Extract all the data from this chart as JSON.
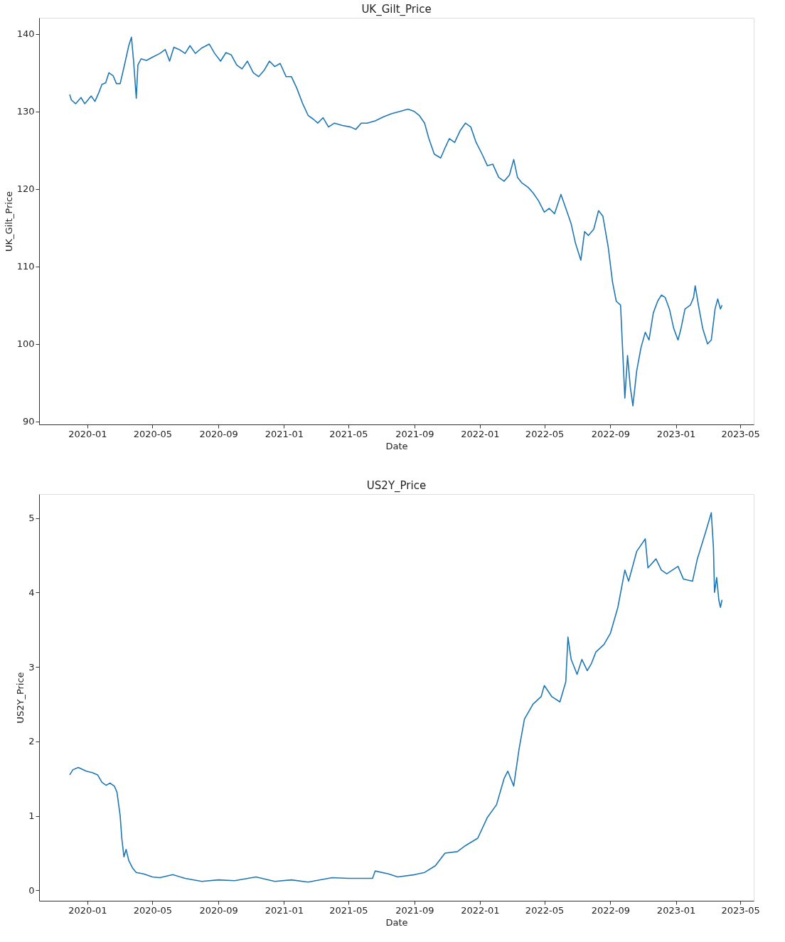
{
  "chart_data": [
    {
      "type": "line",
      "title": "UK_Gilt_Price",
      "xlabel": "Date",
      "ylabel": "UK_Gilt_Price",
      "grid": false,
      "xlim": [
        "2019-10-03",
        "2023-05-26"
      ],
      "xticks": [
        "2020-01",
        "2020-05",
        "2020-09",
        "2021-01",
        "2021-05",
        "2021-09",
        "2022-01",
        "2022-05",
        "2022-09",
        "2023-01",
        "2023-05"
      ],
      "ylim": [
        89.6,
        142.1
      ],
      "yticks": [
        90,
        100,
        110,
        120,
        130,
        140
      ],
      "x": [
        "2019-11-29",
        "2019-12-02",
        "2019-12-10",
        "2019-12-20",
        "2019-12-27",
        "2020-01-08",
        "2020-01-15",
        "2020-01-22",
        "2020-01-28",
        "2020-02-04",
        "2020-02-10",
        "2020-02-18",
        "2020-02-24",
        "2020-03-02",
        "2020-03-10",
        "2020-03-18",
        "2020-03-23",
        "2020-03-27",
        "2020-04-01",
        "2020-04-04",
        "2020-04-10",
        "2020-04-20",
        "2020-05-01",
        "2020-05-15",
        "2020-05-25",
        "2020-06-02",
        "2020-06-10",
        "2020-06-20",
        "2020-07-01",
        "2020-07-10",
        "2020-07-20",
        "2020-08-01",
        "2020-08-15",
        "2020-08-25",
        "2020-09-05",
        "2020-09-15",
        "2020-09-25",
        "2020-10-05",
        "2020-10-15",
        "2020-10-25",
        "2020-11-05",
        "2020-11-15",
        "2020-11-25",
        "2020-12-05",
        "2020-12-15",
        "2020-12-25",
        "2021-01-05",
        "2021-01-15",
        "2021-01-25",
        "2021-02-05",
        "2021-02-15",
        "2021-02-25",
        "2021-03-05",
        "2021-03-15",
        "2021-03-25",
        "2021-04-05",
        "2021-04-20",
        "2021-05-05",
        "2021-05-15",
        "2021-05-25",
        "2021-06-05",
        "2021-06-20",
        "2021-07-05",
        "2021-07-20",
        "2021-08-05",
        "2021-08-20",
        "2021-09-01",
        "2021-09-10",
        "2021-09-20",
        "2021-09-28",
        "2021-10-08",
        "2021-10-20",
        "2021-10-28",
        "2021-11-05",
        "2021-11-15",
        "2021-11-25",
        "2021-12-05",
        "2021-12-15",
        "2021-12-25",
        "2022-01-05",
        "2022-01-15",
        "2022-01-25",
        "2022-02-05",
        "2022-02-15",
        "2022-02-25",
        "2022-03-05",
        "2022-03-12",
        "2022-03-20",
        "2022-04-01",
        "2022-04-10",
        "2022-04-20",
        "2022-05-01",
        "2022-05-10",
        "2022-05-20",
        "2022-06-01",
        "2022-06-10",
        "2022-06-20",
        "2022-06-28",
        "2022-07-08",
        "2022-07-15",
        "2022-07-22",
        "2022-08-01",
        "2022-08-10",
        "2022-08-18",
        "2022-08-28",
        "2022-09-05",
        "2022-09-12",
        "2022-09-20",
        "2022-09-28",
        "2022-10-03",
        "2022-10-08",
        "2022-10-13",
        "2022-10-20",
        "2022-10-28",
        "2022-11-05",
        "2022-11-12",
        "2022-11-20",
        "2022-11-28",
        "2022-12-05",
        "2022-12-12",
        "2022-12-20",
        "2022-12-28",
        "2023-01-05",
        "2023-01-10",
        "2023-01-18",
        "2023-01-28",
        "2023-02-03",
        "2023-02-06",
        "2023-02-12",
        "2023-02-20",
        "2023-03-01",
        "2023-03-08",
        "2023-03-15",
        "2023-03-20",
        "2023-03-25",
        "2023-03-28"
      ],
      "series": [
        {
          "color": "#1f77b4",
          "values": [
            132.2,
            131.5,
            131.0,
            131.8,
            131.0,
            132.0,
            131.3,
            132.4,
            133.5,
            133.7,
            135.0,
            134.6,
            133.6,
            133.6,
            136.0,
            138.5,
            139.6,
            136.5,
            131.7,
            136.0,
            136.8,
            136.6,
            137.0,
            137.5,
            138.0,
            136.5,
            138.3,
            138.0,
            137.5,
            138.5,
            137.5,
            138.2,
            138.7,
            137.5,
            136.5,
            137.6,
            137.3,
            136.0,
            135.5,
            136.5,
            135.0,
            134.5,
            135.3,
            136.5,
            135.8,
            136.2,
            134.5,
            134.5,
            133.0,
            131.0,
            129.5,
            129.0,
            128.5,
            129.2,
            128.0,
            128.5,
            128.2,
            128.0,
            127.7,
            128.5,
            128.5,
            128.8,
            129.3,
            129.7,
            130.0,
            130.3,
            130.0,
            129.5,
            128.5,
            126.5,
            124.5,
            124.0,
            125.3,
            126.5,
            126.0,
            127.5,
            128.5,
            128.0,
            126.0,
            124.5,
            123.0,
            123.2,
            121.5,
            121.0,
            121.8,
            123.8,
            121.5,
            120.8,
            120.2,
            119.5,
            118.5,
            117.0,
            117.5,
            116.8,
            119.3,
            117.5,
            115.5,
            113.0,
            110.8,
            114.5,
            114.0,
            114.8,
            117.2,
            116.5,
            112.5,
            108.0,
            105.5,
            105.0,
            93.0,
            98.5,
            94.5,
            92.0,
            96.5,
            99.5,
            101.5,
            100.5,
            104.0,
            105.5,
            106.3,
            106.0,
            104.5,
            102.0,
            100.5,
            101.8,
            104.5,
            105.0,
            106.0,
            107.5,
            105.0,
            102.0,
            100.0,
            100.5,
            104.5,
            105.8,
            104.5,
            105.0
          ]
        }
      ]
    },
    {
      "type": "line",
      "title": "US2Y_Price",
      "xlabel": "Date",
      "ylabel": "US2Y_Price",
      "grid": false,
      "xlim": [
        "2019-10-03",
        "2023-05-26"
      ],
      "xticks": [
        "2020-01",
        "2020-05",
        "2020-09",
        "2021-01",
        "2021-05",
        "2021-09",
        "2022-01",
        "2022-05",
        "2022-09",
        "2023-01",
        "2023-05"
      ],
      "ylim": [
        -0.14,
        5.32
      ],
      "yticks": [
        0,
        1,
        2,
        3,
        4,
        5
      ],
      "x": [
        "2019-11-29",
        "2019-12-05",
        "2019-12-15",
        "2019-12-30",
        "2020-01-10",
        "2020-01-20",
        "2020-01-28",
        "2020-02-05",
        "2020-02-12",
        "2020-02-20",
        "2020-02-25",
        "2020-03-02",
        "2020-03-05",
        "2020-03-09",
        "2020-03-13",
        "2020-03-18",
        "2020-03-25",
        "2020-04-01",
        "2020-04-15",
        "2020-05-01",
        "2020-05-15",
        "2020-06-08",
        "2020-07-01",
        "2020-08-01",
        "2020-09-01",
        "2020-10-01",
        "2020-11-10",
        "2020-12-15",
        "2021-01-15",
        "2021-02-15",
        "2021-03-01",
        "2021-04-01",
        "2021-05-01",
        "2021-06-15",
        "2021-06-20",
        "2021-07-15",
        "2021-08-01",
        "2021-09-01",
        "2021-09-20",
        "2021-10-10",
        "2021-10-28",
        "2021-11-20",
        "2021-12-05",
        "2021-12-28",
        "2022-01-15",
        "2022-02-01",
        "2022-02-15",
        "2022-02-22",
        "2022-03-05",
        "2022-03-15",
        "2022-03-25",
        "2022-04-10",
        "2022-04-25",
        "2022-05-01",
        "2022-05-15",
        "2022-05-30",
        "2022-06-10",
        "2022-06-14",
        "2022-06-20",
        "2022-07-01",
        "2022-07-10",
        "2022-07-20",
        "2022-07-28",
        "2022-08-05",
        "2022-08-20",
        "2022-09-01",
        "2022-09-15",
        "2022-09-28",
        "2022-10-05",
        "2022-10-20",
        "2022-11-05",
        "2022-11-10",
        "2022-11-25",
        "2022-12-05",
        "2022-12-15",
        "2023-01-05",
        "2023-01-15",
        "2023-02-01",
        "2023-02-10",
        "2023-02-25",
        "2023-03-08",
        "2023-03-12",
        "2023-03-14",
        "2023-03-18",
        "2023-03-22",
        "2023-03-25",
        "2023-03-28"
      ],
      "series": [
        {
          "color": "#1f77b4",
          "values": [
            1.55,
            1.62,
            1.65,
            1.6,
            1.58,
            1.55,
            1.45,
            1.41,
            1.44,
            1.4,
            1.32,
            1.0,
            0.7,
            0.45,
            0.55,
            0.4,
            0.3,
            0.24,
            0.22,
            0.18,
            0.17,
            0.21,
            0.16,
            0.12,
            0.14,
            0.13,
            0.18,
            0.12,
            0.14,
            0.11,
            0.13,
            0.17,
            0.16,
            0.16,
            0.26,
            0.22,
            0.18,
            0.21,
            0.24,
            0.33,
            0.5,
            0.52,
            0.6,
            0.7,
            0.98,
            1.15,
            1.5,
            1.6,
            1.4,
            1.9,
            2.3,
            2.5,
            2.6,
            2.75,
            2.6,
            2.53,
            2.8,
            3.4,
            3.1,
            2.9,
            3.1,
            2.95,
            3.05,
            3.2,
            3.3,
            3.45,
            3.8,
            4.3,
            4.15,
            4.55,
            4.72,
            4.33,
            4.45,
            4.3,
            4.25,
            4.35,
            4.18,
            4.15,
            4.45,
            4.8,
            5.07,
            4.6,
            4.0,
            4.2,
            3.9,
            3.8,
            3.9
          ]
        }
      ]
    }
  ]
}
